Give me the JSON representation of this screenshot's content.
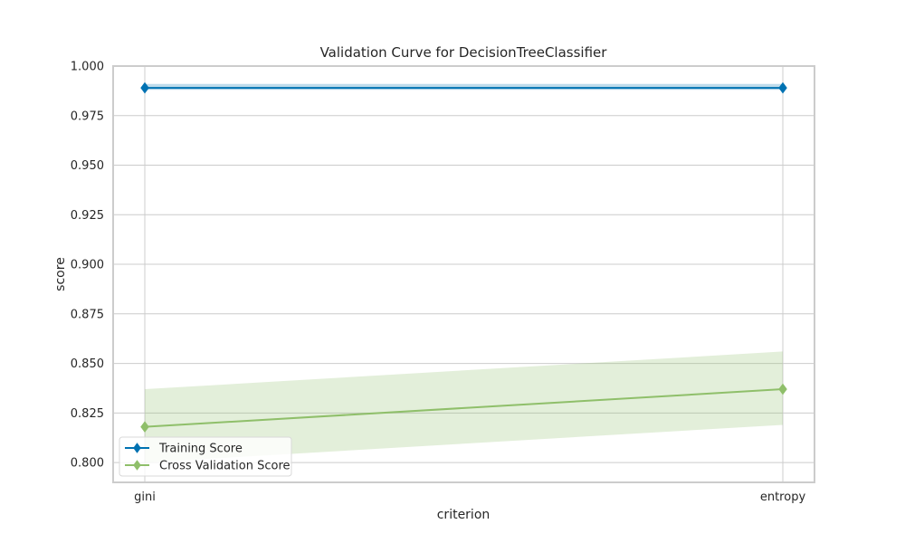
{
  "chart_data": {
    "type": "line",
    "title": "Validation Curve for DecisionTreeClassifier",
    "xlabel": "criterion",
    "ylabel": "score",
    "categories": [
      "gini",
      "entropy"
    ],
    "ylim": [
      0.79,
      1.0
    ],
    "yticks": [
      "0.800",
      "0.825",
      "0.850",
      "0.875",
      "0.900",
      "0.925",
      "0.950",
      "0.975",
      "1.000"
    ],
    "grid": true,
    "legend_position": "bottom-left",
    "series": [
      {
        "name": "Training Score",
        "color": "#0072B2",
        "values": [
          0.989,
          0.989
        ],
        "lower": [
          0.988,
          0.988
        ],
        "upper": [
          0.991,
          0.991
        ],
        "marker": "diamond"
      },
      {
        "name": "Cross Validation Score",
        "color": "#8FBF6A",
        "values": [
          0.818,
          0.837
        ],
        "lower": [
          0.8,
          0.819
        ],
        "upper": [
          0.837,
          0.856
        ],
        "marker": "diamond"
      }
    ]
  }
}
